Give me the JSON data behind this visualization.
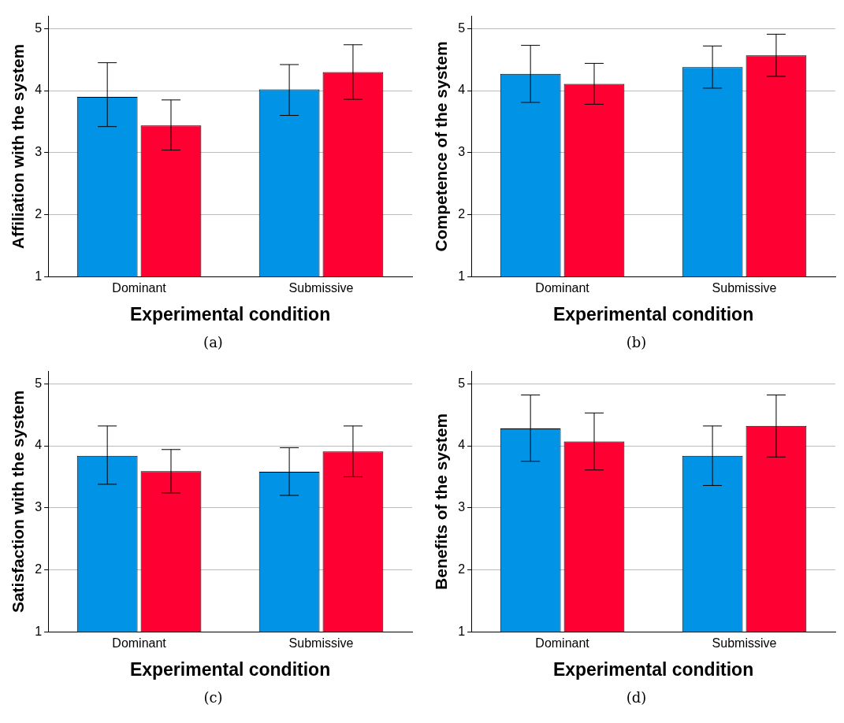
{
  "chart_data": [
    {
      "type": "bar",
      "xlabel": "Experimental condition",
      "ylabel": "Affiliation with the system",
      "categories": [
        "Dominant",
        "Submissive"
      ],
      "ylim": [
        1,
        5.2
      ],
      "yticks": [
        1,
        2,
        3,
        4,
        5
      ],
      "grid": "y",
      "annotations": [
        "(a)"
      ],
      "series": [
        {
          "color": "#0093e6",
          "values": [
            3.9,
            4.02
          ],
          "errors": [
            [
              3.42,
              4.45
            ],
            [
              3.6,
              4.42
            ]
          ]
        },
        {
          "color": "#ff0033",
          "values": [
            3.44,
            4.3
          ],
          "errors": [
            [
              3.04,
              3.85
            ],
            [
              3.86,
              4.74
            ]
          ]
        }
      ]
    },
    {
      "type": "bar",
      "xlabel": "Experimental condition",
      "ylabel": "Competence of the system",
      "categories": [
        "Dominant",
        "Submissive"
      ],
      "ylim": [
        1,
        5.2
      ],
      "yticks": [
        1,
        2,
        3,
        4,
        5
      ],
      "grid": "y",
      "annotations": [
        "(b)"
      ],
      "series": [
        {
          "color": "#0093e6",
          "values": [
            4.27,
            4.38
          ],
          "errors": [
            [
              3.81,
              4.73
            ],
            [
              4.04,
              4.72
            ]
          ]
        },
        {
          "color": "#ff0033",
          "values": [
            4.11,
            4.57
          ],
          "errors": [
            [
              3.78,
              4.44
            ],
            [
              4.23,
              4.91
            ]
          ]
        }
      ]
    },
    {
      "type": "bar",
      "xlabel": "Experimental condition",
      "ylabel": "Satisfaction with the system",
      "categories": [
        "Dominant",
        "Submissive"
      ],
      "ylim": [
        1,
        5.2
      ],
      "yticks": [
        1,
        2,
        3,
        4,
        5
      ],
      "grid": "y",
      "annotations": [
        "(c)"
      ],
      "series": [
        {
          "color": "#0093e6",
          "values": [
            3.84,
            3.58
          ],
          "errors": [
            [
              3.38,
              4.32
            ],
            [
              3.2,
              3.97
            ]
          ]
        },
        {
          "color": "#ff0033",
          "values": [
            3.59,
            3.91
          ],
          "errors": [
            [
              3.24,
              3.94
            ],
            [
              3.5,
              4.32
            ]
          ]
        }
      ]
    },
    {
      "type": "bar",
      "xlabel": "Experimental condition",
      "ylabel": "Benefits of the system",
      "categories": [
        "Dominant",
        "Submissive"
      ],
      "ylim": [
        1,
        5.2
      ],
      "yticks": [
        1,
        2,
        3,
        4,
        5
      ],
      "grid": "y",
      "annotations": [
        "(d)"
      ],
      "series": [
        {
          "color": "#0093e6",
          "values": [
            4.28,
            3.84
          ],
          "errors": [
            [
              3.75,
              4.82
            ],
            [
              3.36,
              4.32
            ]
          ]
        },
        {
          "color": "#ff0033",
          "values": [
            4.07,
            4.32
          ],
          "errors": [
            [
              3.61,
              4.53
            ],
            [
              3.82,
              4.82
            ]
          ]
        }
      ]
    }
  ]
}
